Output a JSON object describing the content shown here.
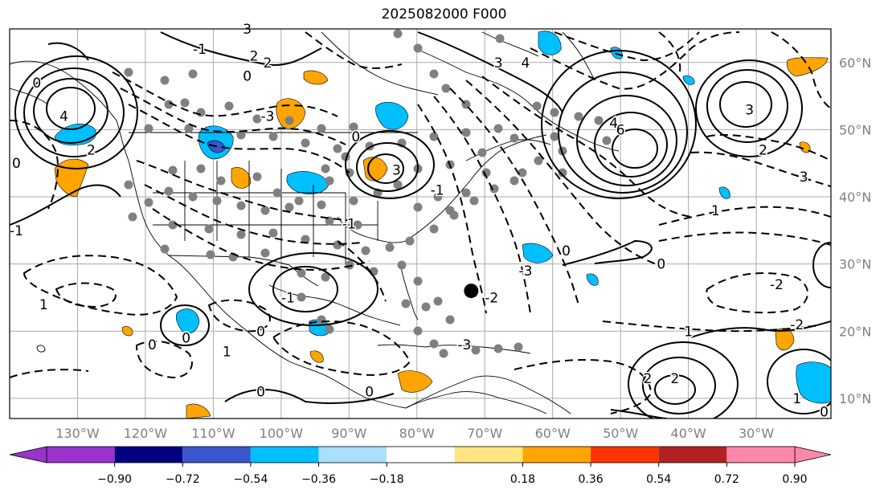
{
  "title": "2025082000 F000",
  "map": {
    "lon_range": [
      -140,
      -19
    ],
    "lat_range": [
      7,
      65
    ],
    "lon_labels": [
      {
        "lon": -130,
        "text": "130°W"
      },
      {
        "lon": -120,
        "text": "120°W"
      },
      {
        "lon": -110,
        "text": "110°W"
      },
      {
        "lon": -100,
        "text": "100°W"
      },
      {
        "lon": -90,
        "text": "90°W"
      },
      {
        "lon": -80,
        "text": "80°W"
      },
      {
        "lon": -70,
        "text": "70°W"
      },
      {
        "lon": -60,
        "text": "60°W"
      },
      {
        "lon": -50,
        "text": "50°W"
      },
      {
        "lon": -40,
        "text": "40°W"
      },
      {
        "lon": -30,
        "text": "30°W"
      }
    ],
    "lat_labels": [
      {
        "lat": 60,
        "text": "60°N"
      },
      {
        "lat": 50,
        "text": "50°N"
      },
      {
        "lat": 40,
        "text": "40°N"
      },
      {
        "lat": 30,
        "text": "30°N"
      },
      {
        "lat": 20,
        "text": "20°N"
      },
      {
        "lat": 10,
        "text": "10°N"
      }
    ],
    "gridlines": true,
    "contour_labels": [
      {
        "lon": -132,
        "lat": 52,
        "text": "4"
      },
      {
        "lon": -128,
        "lat": 47,
        "text": "2"
      },
      {
        "lon": -139,
        "lat": 45,
        "text": "0"
      },
      {
        "lon": -136,
        "lat": 57,
        "text": "0"
      },
      {
        "lon": -139,
        "lat": 35,
        "text": "-1"
      },
      {
        "lon": -112,
        "lat": 62,
        "text": "-1"
      },
      {
        "lon": -104,
        "lat": 61,
        "text": "2"
      },
      {
        "lon": -105,
        "lat": 65,
        "text": "3"
      },
      {
        "lon": -102,
        "lat": 52,
        "text": "-3"
      },
      {
        "lon": -105,
        "lat": 58,
        "text": "0"
      },
      {
        "lon": -89,
        "lat": 49,
        "text": "0"
      },
      {
        "lon": -83,
        "lat": 44,
        "text": "3"
      },
      {
        "lon": -90,
        "lat": 36,
        "text": "-1"
      },
      {
        "lon": -77,
        "lat": 41,
        "text": "-1"
      },
      {
        "lon": -64,
        "lat": 60,
        "text": "4"
      },
      {
        "lon": -68,
        "lat": 60,
        "text": "3"
      },
      {
        "lon": -51,
        "lat": 51,
        "text": "4"
      },
      {
        "lon": -50,
        "lat": 50,
        "text": "6"
      },
      {
        "lon": -58,
        "lat": 32,
        "text": "0"
      },
      {
        "lon": -44,
        "lat": 30,
        "text": "0"
      },
      {
        "lon": -64,
        "lat": 29,
        "text": "-3"
      },
      {
        "lon": -69,
        "lat": 25,
        "text": "-2"
      },
      {
        "lon": -31,
        "lat": 53,
        "text": "3"
      },
      {
        "lon": -29,
        "lat": 47,
        "text": "2"
      },
      {
        "lon": -36,
        "lat": 38,
        "text": "1"
      },
      {
        "lon": -23,
        "lat": 43,
        "text": "3"
      },
      {
        "lon": -27,
        "lat": 27,
        "text": "-2"
      },
      {
        "lon": -24,
        "lat": 21,
        "text": "-2"
      },
      {
        "lon": -40,
        "lat": 20,
        "text": "1"
      },
      {
        "lon": -73,
        "lat": 18,
        "text": "-3"
      },
      {
        "lon": -99,
        "lat": 25,
        "text": "-1"
      },
      {
        "lon": -114,
        "lat": 19,
        "text": "0"
      },
      {
        "lon": -119,
        "lat": 18,
        "text": "0"
      },
      {
        "lon": -103,
        "lat": 20,
        "text": "0"
      },
      {
        "lon": -87,
        "lat": 11,
        "text": "0"
      },
      {
        "lon": -103,
        "lat": 11,
        "text": "0"
      },
      {
        "lon": -108,
        "lat": 17,
        "text": "1"
      },
      {
        "lon": -135,
        "lat": 24,
        "text": "1"
      },
      {
        "lon": -46,
        "lat": 13,
        "text": "2"
      },
      {
        "lon": -42,
        "lat": 13,
        "text": "2"
      },
      {
        "lon": -24,
        "lat": 10,
        "text": "1"
      },
      {
        "lon": -20,
        "lat": 8,
        "text": "0"
      },
      {
        "lon": -102,
        "lat": 60,
        "text": "2"
      }
    ],
    "tropical_cyclone": {
      "lon": -72,
      "lat": 26
    }
  },
  "colorbar": {
    "colors": [
      "#9933cc",
      "#000080",
      "#3a56cc",
      "#00bfff",
      "#aadfff",
      "#ffffff",
      "#ffe680",
      "#ffa500",
      "#ff3300",
      "#b22222",
      "#ff88aa"
    ],
    "under_color": "#9933cc",
    "over_color": "#ff88aa",
    "ticks": [
      "−0.90",
      "−0.72",
      "−0.54",
      "−0.36",
      "−0.18",
      "0.18",
      "0.36",
      "0.54",
      "0.72",
      "0.90"
    ]
  }
}
